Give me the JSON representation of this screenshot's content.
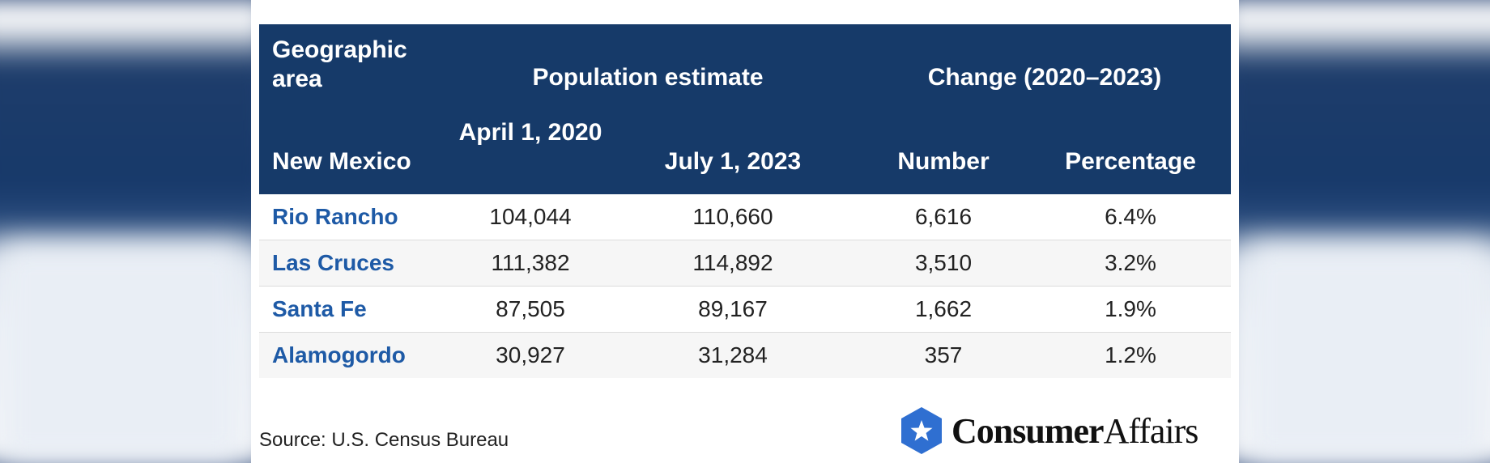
{
  "header": {
    "geographic_area": "Geographic area",
    "population_estimate": "Population estimate",
    "change": "Change (2020–2023)",
    "state": "New Mexico",
    "april_2020": "April 1, 2020",
    "july_2023": "July 1, 2023",
    "number": "Number",
    "percentage": "Percentage"
  },
  "rows": [
    {
      "area": "Rio Rancho",
      "april_2020": "104,044",
      "july_2023": "110,660",
      "number": "6,616",
      "percentage": "6.4%"
    },
    {
      "area": "Las Cruces",
      "april_2020": "111,382",
      "july_2023": "114,892",
      "number": "3,510",
      "percentage": "3.2%"
    },
    {
      "area": "Santa Fe",
      "april_2020": "87,505",
      "july_2023": "89,167",
      "number": "1,662",
      "percentage": "1.9%"
    },
    {
      "area": "Alamogordo",
      "april_2020": "30,927",
      "july_2023": "31,284",
      "number": "357",
      "percentage": "1.2%"
    }
  ],
  "source": "Source: U.S. Census Bureau",
  "logo": {
    "bold": "Consumer",
    "light": "Affairs"
  },
  "colors": {
    "header_bg": "#163a69",
    "area_link": "#1e5aa6",
    "logo_mark": "#2f6fd1"
  }
}
